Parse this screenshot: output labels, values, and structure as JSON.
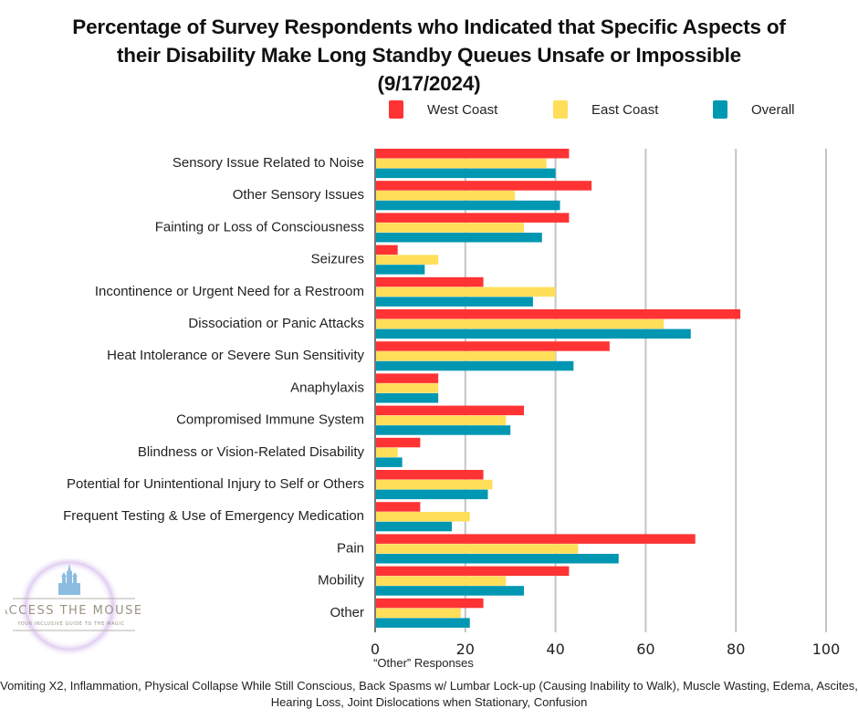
{
  "chart_data": {
    "type": "bar",
    "orientation": "horizontal",
    "title": "Percentage of Survey Respondents who Indicated that Specific Aspects of their Disability Make Long Standby Queues Unsafe or Impossible (9/17/2024)",
    "title_lines": [
      "Percentage of Survey Respondents who Indicated that Specific Aspects of",
      "their Disability Make Long Standby Queues Unsafe or Impossible",
      "(9/17/2024)"
    ],
    "xlabel": "",
    "ylabel": "",
    "xlim": [
      0,
      100
    ],
    "xticks": [
      0,
      20,
      40,
      60,
      80,
      100
    ],
    "grid": true,
    "legend_position": "top-right",
    "categories": [
      "Sensory Issue Related to Noise",
      "Other Sensory Issues",
      "Fainting or Loss of Consciousness",
      "Seizures",
      "Incontinence or Urgent Need for a Restroom",
      "Dissociation or Panic Attacks",
      "Heat Intolerance or Severe Sun Sensitivity",
      "Anaphylaxis",
      "Compromised Immune System",
      "Blindness or Vision-Related Disability",
      "Potential for Unintentional Injury to Self or Others",
      "Frequent Testing & Use of Emergency Medication",
      "Pain",
      "Mobility",
      "Other"
    ],
    "series": [
      {
        "name": "West Coast",
        "color": "#FF3333",
        "values": [
          43,
          48,
          43,
          5,
          24,
          81,
          52,
          14,
          33,
          10,
          24,
          10,
          71,
          43,
          24
        ]
      },
      {
        "name": "East Coast",
        "color": "#FFDE59",
        "values": [
          38,
          31,
          33,
          14,
          40,
          64,
          40,
          14,
          29,
          5,
          26,
          21,
          45,
          29,
          19
        ]
      },
      {
        "name": "Overall",
        "color": "#0097B2",
        "values": [
          40,
          41,
          37,
          11,
          35,
          70,
          44,
          14,
          30,
          6,
          25,
          17,
          54,
          33,
          21
        ]
      }
    ]
  },
  "legend": {
    "items": [
      {
        "label": "West Coast",
        "color": "#FF3333"
      },
      {
        "label": "East Coast",
        "color": "#FFDE59"
      },
      {
        "label": "Overall",
        "color": "#0097B2"
      }
    ]
  },
  "other_responses": {
    "title": "“Other” Responses",
    "text": "Vomiting X2, Inflammation, Physical Collapse While Still Conscious, Back Spasms w/ Lumbar Lock-up (Causing Inability to Walk), Muscle Wasting, Edema, Ascites, Hearing Loss, Joint Dislocations when Stationary, Confusion"
  },
  "logo": {
    "name": "ACCESS THE MOUSE",
    "tagline": "YOUR INCLUSIVE GUIDE TO THE MAGIC"
  }
}
